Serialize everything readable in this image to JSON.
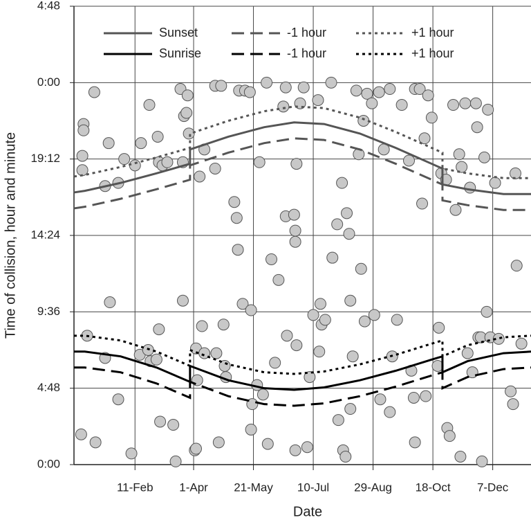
{
  "chart_data": {
    "type": "scatter",
    "xlabel": "Date",
    "ylabel": "Time of collision, hour and minute",
    "xlim": [
      -9,
      373
    ],
    "ylim": [
      0,
      28.8
    ],
    "xticks": [
      {
        "value": 42,
        "label": "11-Feb"
      },
      {
        "value": 91,
        "label": "1-Apr"
      },
      {
        "value": 141,
        "label": "21-May"
      },
      {
        "value": 191,
        "label": "10-Jul"
      },
      {
        "value": 241,
        "label": "29-Aug"
      },
      {
        "value": 291,
        "label": "18-Oct"
      },
      {
        "value": 341,
        "label": "7-Dec"
      }
    ],
    "yticks": [
      {
        "value": 0,
        "label": "0:00"
      },
      {
        "value": 4.8,
        "label": "4:48"
      },
      {
        "value": 9.6,
        "label": "9:36"
      },
      {
        "value": 14.4,
        "label": "14:24"
      },
      {
        "value": 19.2,
        "label": "19:12"
      },
      {
        "value": 24,
        "label": "0:00"
      },
      {
        "value": 28.8,
        "label": "4:48"
      }
    ],
    "grid": true,
    "x": [
      -9,
      0,
      30,
      60,
      88,
      88,
      120,
      150,
      175,
      200,
      230,
      260,
      290,
      299,
      299,
      320,
      350,
      373
    ],
    "series": [
      {
        "name": "Sunset",
        "color": "#555555",
        "dash": "solid",
        "values": [
          17.1,
          17.2,
          17.7,
          18.3,
          18.9,
          19.8,
          20.6,
          21.2,
          21.5,
          21.4,
          20.8,
          19.9,
          18.9,
          18.6,
          17.6,
          17.3,
          17.0,
          17.0
        ]
      },
      {
        "name": "-1 hour",
        "color": "#555555",
        "dash": "dashed",
        "values": [
          16.1,
          16.2,
          16.7,
          17.3,
          17.9,
          18.8,
          19.6,
          20.2,
          20.5,
          20.4,
          19.8,
          18.9,
          17.9,
          17.6,
          16.6,
          16.3,
          16.0,
          16.0
        ]
      },
      {
        "name": "+1 hour",
        "color": "#555555",
        "dash": "dotted",
        "values": [
          18.1,
          18.2,
          18.7,
          19.3,
          19.9,
          20.8,
          21.6,
          22.2,
          22.5,
          22.4,
          21.8,
          20.9,
          19.9,
          19.6,
          18.6,
          18.3,
          18.0,
          18.0
        ]
      },
      {
        "name": "Sunrise",
        "color": "#000000",
        "dash": "solid",
        "values": [
          7.1,
          7.1,
          6.8,
          6.1,
          5.2,
          6.2,
          5.3,
          4.8,
          4.7,
          4.85,
          5.3,
          5.9,
          6.6,
          6.8,
          5.8,
          6.5,
          7.0,
          7.1
        ]
      },
      {
        "name": "-1 hour",
        "color": "#000000",
        "dash": "dashed",
        "values": [
          6.1,
          6.1,
          5.8,
          5.1,
          4.2,
          5.2,
          4.3,
          3.8,
          3.7,
          3.85,
          4.3,
          4.9,
          5.6,
          5.8,
          4.8,
          5.5,
          6.0,
          6.1
        ]
      },
      {
        "name": "+1 hour",
        "color": "#000000",
        "dash": "dotted",
        "values": [
          8.1,
          8.1,
          7.8,
          7.1,
          6.2,
          7.2,
          6.3,
          5.8,
          5.7,
          5.85,
          6.3,
          6.9,
          7.6,
          7.8,
          6.8,
          7.5,
          8.0,
          8.1
        ]
      }
    ],
    "points": {
      "color": "#c8c8c8",
      "x": [
        -1,
        -1,
        -2,
        -2,
        -3,
        9,
        8,
        2,
        17,
        20,
        21,
        17,
        28,
        28,
        33,
        39,
        42,
        46,
        47,
        53,
        54,
        55,
        60,
        61,
        62,
        63,
        62,
        65,
        69,
        74,
        76,
        80,
        82,
        82,
        83,
        86,
        85,
        87,
        92,
        93,
        93,
        94,
        96,
        98,
        100,
        100,
        109,
        109,
        110,
        112,
        114,
        116,
        117,
        118,
        125,
        127,
        128,
        129,
        132,
        134,
        138,
        139,
        139,
        140,
        144,
        146,
        149,
        152,
        153,
        156,
        159,
        162,
        166,
        168,
        168,
        169,
        175,
        176,
        176,
        177,
        177,
        176,
        180,
        183,
        186,
        188,
        191,
        195,
        196,
        197,
        198,
        201,
        206,
        207,
        211,
        212,
        215,
        216,
        218,
        219,
        221,
        222,
        222,
        224,
        227,
        229,
        231,
        233,
        234,
        236,
        240,
        242,
        246,
        247,
        250,
        255,
        255,
        257,
        261,
        265,
        271,
        273,
        275,
        276,
        276,
        280,
        282,
        284,
        285,
        287,
        290,
        295,
        296,
        298,
        302,
        303,
        305,
        308,
        310,
        313,
        314,
        315,
        318,
        320,
        322,
        324,
        327,
        328,
        329,
        331,
        332,
        334,
        337,
        336,
        339,
        343,
        346,
        356,
        358,
        360,
        361,
        365
      ],
      "y": [
        21.4,
        21.0,
        19.4,
        18.5,
        1.9,
        1.4,
        23.4,
        8.1,
        17.5,
        20.2,
        10.2,
        6.7,
        17.7,
        4.1,
        19.2,
        0.7,
        18.8,
        6.9,
        20.2,
        7.2,
        22.6,
        6.5,
        6.6,
        20.6,
        8.5,
        2.7,
        19.0,
        18.8,
        19.0,
        2.5,
        0.2,
        23.6,
        10.3,
        19.0,
        21.9,
        23.2,
        22.1,
        20.8,
        0.9,
        7.3,
        1.0,
        5.3,
        18.1,
        8.7,
        19.8,
        7.0,
        23.8,
        18.6,
        7.0,
        1.4,
        23.8,
        8.8,
        6.2,
        5.5,
        16.5,
        15.5,
        13.5,
        23.5,
        10.1,
        23.5,
        23.4,
        2.2,
        9.7,
        3.8,
        5.0,
        19.0,
        4.4,
        24.0,
        1.3,
        12.9,
        6.4,
        11.6,
        22.5,
        15.6,
        23.7,
        8.1,
        15.7,
        14.7,
        14.0,
        18.9,
        7.5,
        0.9,
        22.7,
        23.7,
        1.1,
        5.5,
        9.4,
        22.9,
        7.1,
        10.1,
        8.8,
        9.1,
        24.0,
        13.0,
        15.1,
        2.8,
        17.7,
        0.9,
        0.5,
        15.8,
        14.5,
        3.5,
        10.3,
        6.8,
        23.5,
        19.5,
        12.3,
        21.6,
        9.0,
        23.3,
        22.7,
        9.4,
        23.4,
        4.1,
        19.8,
        23.6,
        3.3,
        6.8,
        9.1,
        22.6,
        19.1,
        5.9,
        4.2,
        23.6,
        1.4,
        23.6,
        16.4,
        20.5,
        4.3,
        23.2,
        21.8,
        6.2,
        8.6,
        18.3,
        17.9,
        2.3,
        1.8,
        22.6,
        16.0,
        19.5,
        0.5,
        18.7,
        22.7,
        7.0,
        17.4,
        5.8,
        22.7,
        21.2,
        8.0,
        8.0,
        0.2,
        19.3,
        22.3,
        9.6,
        8.0,
        17.7,
        7.9,
        4.6,
        3.8,
        18.3,
        12.5,
        7.6
      ]
    }
  }
}
